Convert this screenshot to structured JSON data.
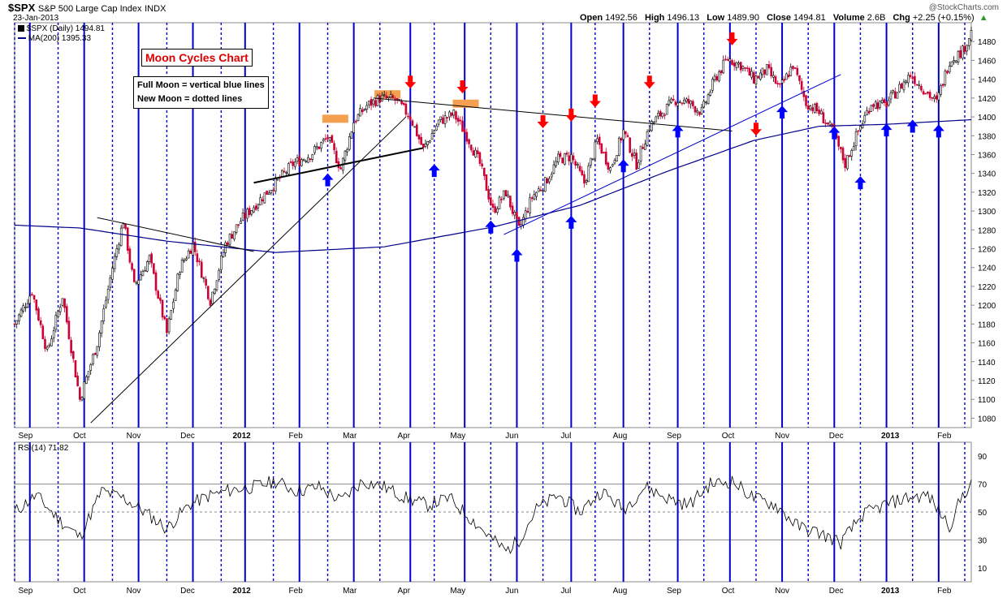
{
  "header": {
    "symbol": "$SPX",
    "name": "S&P 500 Large Cap Index",
    "exchange": "INDX",
    "date": "23-Jan-2013",
    "open_label": "Open",
    "open": "1492.56",
    "high_label": "High",
    "high": "1496.13",
    "low_label": "Low",
    "low": "1489.90",
    "close_label": "Close",
    "close": "1494.81",
    "volume_label": "Volume",
    "volume": "2.6B",
    "chg_label": "Chg",
    "chg": "+2.25 (+0.15%)",
    "copyright": "@StockCharts.com"
  },
  "legend": {
    "price": "$SPX (Daily) 1494.81",
    "ma": "MA(200) 1395.33",
    "rsi": "RSI(14) 71.82"
  },
  "annotations": {
    "title": "Moon Cycles Chart",
    "note_full": "Full Moon = vertical blue lines",
    "note_new": "New Moon = dotted lines"
  },
  "colors": {
    "up": "#000000",
    "down": "#cc0033",
    "ma": "#00008b",
    "moon": "#0000cc",
    "arrow_up": "#0000ff",
    "arrow_down": "#ff0000",
    "box": "#f5a050",
    "rsi_fill": "#6a8a6a"
  },
  "chart_data": {
    "type": "line",
    "x_ticks": [
      "Sep",
      "Oct",
      "Nov",
      "Dec",
      "2012",
      "Feb",
      "Mar",
      "Apr",
      "May",
      "Jun",
      "Jul",
      "Aug",
      "Sep",
      "Oct",
      "Nov",
      "Dec",
      "2013",
      "Feb"
    ],
    "price_axis": {
      "ylim": [
        1070,
        1500
      ],
      "ticks": [
        1080,
        1100,
        1120,
        1140,
        1160,
        1180,
        1200,
        1220,
        1240,
        1260,
        1280,
        1300,
        1320,
        1340,
        1360,
        1380,
        1400,
        1420,
        1440,
        1460,
        1480
      ]
    },
    "rsi_axis": {
      "ylim": [
        0,
        100
      ],
      "ticks": [
        10,
        30,
        50,
        70,
        90
      ]
    },
    "price_anchors": [
      [
        0,
        1180
      ],
      [
        8,
        1215
      ],
      [
        15,
        1150
      ],
      [
        22,
        1210
      ],
      [
        30,
        1100
      ],
      [
        38,
        1160
      ],
      [
        45,
        1240
      ],
      [
        50,
        1290
      ],
      [
        55,
        1220
      ],
      [
        62,
        1250
      ],
      [
        70,
        1170
      ],
      [
        76,
        1240
      ],
      [
        82,
        1265
      ],
      [
        90,
        1205
      ],
      [
        97,
        1265
      ],
      [
        104,
        1290
      ],
      [
        112,
        1310
      ],
      [
        120,
        1330
      ],
      [
        128,
        1350
      ],
      [
        136,
        1360
      ],
      [
        144,
        1378
      ],
      [
        150,
        1345
      ],
      [
        156,
        1395
      ],
      [
        162,
        1412
      ],
      [
        168,
        1420
      ],
      [
        175,
        1418
      ],
      [
        182,
        1400
      ],
      [
        188,
        1365
      ],
      [
        195,
        1395
      ],
      [
        202,
        1403
      ],
      [
        208,
        1380
      ],
      [
        214,
        1350
      ],
      [
        220,
        1300
      ],
      [
        226,
        1320
      ],
      [
        232,
        1280
      ],
      [
        238,
        1315
      ],
      [
        244,
        1330
      ],
      [
        250,
        1355
      ],
      [
        256,
        1358
      ],
      [
        262,
        1330
      ],
      [
        268,
        1375
      ],
      [
        274,
        1345
      ],
      [
        280,
        1385
      ],
      [
        286,
        1350
      ],
      [
        292,
        1390
      ],
      [
        298,
        1405
      ],
      [
        304,
        1418
      ],
      [
        310,
        1415
      ],
      [
        316,
        1405
      ],
      [
        322,
        1440
      ],
      [
        328,
        1462
      ],
      [
        334,
        1455
      ],
      [
        340,
        1440
      ],
      [
        346,
        1450
      ],
      [
        352,
        1430
      ],
      [
        358,
        1455
      ],
      [
        364,
        1415
      ],
      [
        370,
        1405
      ],
      [
        376,
        1385
      ],
      [
        382,
        1350
      ],
      [
        388,
        1385
      ],
      [
        394,
        1415
      ],
      [
        400,
        1412
      ],
      [
        406,
        1428
      ],
      [
        412,
        1445
      ],
      [
        418,
        1430
      ],
      [
        424,
        1415
      ],
      [
        430,
        1460
      ],
      [
        436,
        1470
      ],
      [
        440,
        1490
      ]
    ],
    "ma200_anchors": [
      [
        0,
        1285
      ],
      [
        30,
        1282
      ],
      [
        70,
        1268
      ],
      [
        120,
        1256
      ],
      [
        170,
        1262
      ],
      [
        220,
        1283
      ],
      [
        260,
        1306
      ],
      [
        300,
        1342
      ],
      [
        340,
        1375
      ],
      [
        370,
        1390
      ],
      [
        400,
        1392
      ],
      [
        440,
        1397
      ]
    ],
    "rsi_anchors": [
      [
        0,
        50
      ],
      [
        10,
        62
      ],
      [
        20,
        45
      ],
      [
        30,
        32
      ],
      [
        40,
        65
      ],
      [
        50,
        60
      ],
      [
        60,
        50
      ],
      [
        70,
        38
      ],
      [
        80,
        55
      ],
      [
        90,
        62
      ],
      [
        100,
        66
      ],
      [
        110,
        68
      ],
      [
        120,
        72
      ],
      [
        130,
        65
      ],
      [
        140,
        68
      ],
      [
        150,
        58
      ],
      [
        160,
        72
      ],
      [
        170,
        68
      ],
      [
        180,
        60
      ],
      [
        190,
        55
      ],
      [
        200,
        60
      ],
      [
        210,
        45
      ],
      [
        220,
        30
      ],
      [
        226,
        22
      ],
      [
        232,
        30
      ],
      [
        240,
        52
      ],
      [
        250,
        62
      ],
      [
        260,
        50
      ],
      [
        270,
        65
      ],
      [
        280,
        52
      ],
      [
        290,
        68
      ],
      [
        300,
        60
      ],
      [
        310,
        55
      ],
      [
        320,
        70
      ],
      [
        330,
        72
      ],
      [
        340,
        60
      ],
      [
        350,
        55
      ],
      [
        360,
        40
      ],
      [
        370,
        35
      ],
      [
        380,
        28
      ],
      [
        390,
        48
      ],
      [
        400,
        55
      ],
      [
        410,
        60
      ],
      [
        420,
        62
      ],
      [
        430,
        40
      ],
      [
        436,
        62
      ],
      [
        440,
        70
      ]
    ],
    "trendlines": [
      {
        "from": [
          35,
          1075
        ],
        "to": [
          180,
          1400
        ]
      },
      {
        "from": [
          38,
          1293
        ],
        "to": [
          110,
          1257
        ]
      },
      {
        "from": [
          110,
          1330
        ],
        "to": [
          188,
          1367
        ]
      },
      {
        "from": [
          165,
          1420
        ],
        "to": [
          330,
          1385
        ]
      },
      {
        "from": [
          225,
          1275
        ],
        "to": [
          380,
          1445
        ]
      }
    ],
    "full_moons": [
      7,
      32,
      57,
      82,
      106,
      131,
      156,
      182,
      207,
      231,
      256,
      280,
      305,
      329,
      353,
      377,
      401,
      425
    ],
    "new_moons": [
      0,
      20,
      45,
      70,
      95,
      119,
      144,
      168,
      193,
      219,
      243,
      267,
      292,
      317,
      341,
      365,
      389,
      413,
      437
    ],
    "up_arrows": [
      [
        144,
        1340
      ],
      [
        193,
        1350
      ],
      [
        219,
        1290
      ],
      [
        231,
        1260
      ],
      [
        256,
        1295
      ],
      [
        280,
        1355
      ],
      [
        305,
        1392
      ],
      [
        353,
        1412
      ],
      [
        377,
        1390
      ],
      [
        389,
        1337
      ],
      [
        401,
        1393
      ],
      [
        413,
        1397
      ],
      [
        425,
        1392
      ]
    ],
    "down_arrows": [
      [
        182,
        1430
      ],
      [
        206,
        1425
      ],
      [
        243,
        1388
      ],
      [
        256,
        1395
      ],
      [
        267,
        1410
      ],
      [
        292,
        1430
      ],
      [
        330,
        1476
      ],
      [
        341,
        1380
      ]
    ],
    "boxes": [
      [
        146,
        1398
      ],
      [
        170,
        1424
      ],
      [
        206,
        1414
      ]
    ]
  }
}
